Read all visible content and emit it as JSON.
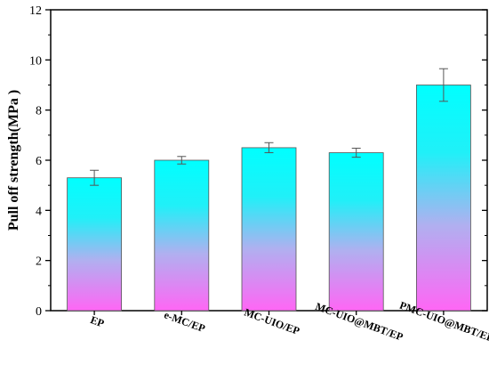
{
  "chart_data": {
    "type": "bar",
    "categories": [
      "EP",
      "e-MC/EP",
      "MC-UIO/EP",
      "MC-UIO@MBT/EP",
      "PMC-UIO@MBT/EP"
    ],
    "values": [
      5.3,
      6.0,
      6.5,
      6.3,
      9.0
    ],
    "errors": [
      0.3,
      0.15,
      0.2,
      0.18,
      0.65
    ],
    "title": "",
    "xlabel": "",
    "ylabel": "Pull off strength(MPa )",
    "ylim": [
      0,
      12
    ],
    "yticks": [
      0,
      2,
      4,
      6,
      8,
      10,
      12
    ],
    "grid": false,
    "legend": "none",
    "colors": {
      "bar_top": "#00ffff",
      "bar_mid": "#b0b0f0",
      "bar_bottom": "#ff66f5",
      "edge": "#555555",
      "axis": "#000000"
    }
  }
}
